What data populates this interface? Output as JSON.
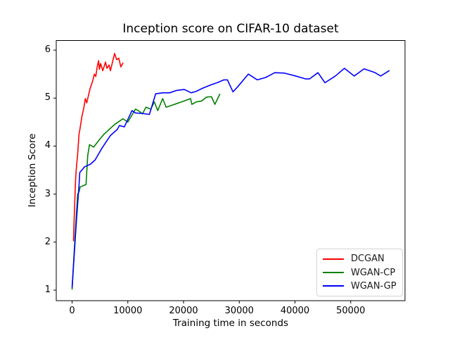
{
  "figure": {
    "background": "#ffffff",
    "frame_color": "#000000",
    "text_color": "#000000"
  },
  "chart_data": {
    "type": "line",
    "title": "Inception score on CIFAR-10 dataset",
    "xlabel": "Training time in seconds",
    "ylabel": "Inception Score",
    "xlim": [
      -2845,
      59745
    ],
    "ylim": [
      0.78,
      6.2
    ],
    "xticks": [
      0,
      10000,
      20000,
      30000,
      40000,
      50000
    ],
    "xtick_labels": [
      "0",
      "10000",
      "20000",
      "30000",
      "40000",
      "50000"
    ],
    "yticks": [
      1,
      2,
      3,
      4,
      5,
      6
    ],
    "ytick_labels": [
      "1",
      "2",
      "3",
      "4",
      "5",
      "6"
    ],
    "grid": false,
    "legend": {
      "position": "lower right",
      "entries": [
        "DCGAN",
        "WGAN-CP",
        "WGAN-GP"
      ]
    },
    "series": [
      {
        "name": "DCGAN",
        "color": "#ff0000",
        "x": [
          250,
          375,
          500,
          625,
          750,
          1000,
          1250,
          1375,
          1750,
          2125,
          2375,
          2625,
          3250,
          3625,
          4000,
          4250,
          4500,
          4750,
          4900,
          5125,
          5500,
          6000,
          6250,
          6625,
          6875,
          7625,
          8000,
          8375,
          8750,
          9125
        ],
        "y": [
          2.03,
          2.5,
          2.92,
          3.3,
          3.52,
          3.84,
          4.26,
          4.33,
          4.61,
          4.81,
          4.99,
          4.9,
          5.21,
          5.33,
          5.5,
          5.45,
          5.65,
          5.78,
          5.6,
          5.72,
          5.57,
          5.75,
          5.62,
          5.69,
          5.57,
          5.93,
          5.8,
          5.83,
          5.65,
          5.73
        ]
      },
      {
        "name": "WGAN-CP",
        "color": "#008000",
        "x": [
          0,
          250,
          500,
          750,
          1000,
          1250,
          1450,
          2500,
          2650,
          2800,
          3125,
          3875,
          5000,
          5750,
          6875,
          7625,
          8500,
          9125,
          10000,
          11375,
          11875,
          12625,
          13250,
          14125,
          14750,
          15375,
          16250,
          16875,
          17625,
          18875,
          20125,
          21250,
          21500,
          22250,
          23250,
          24125,
          25000,
          25625,
          26500
        ],
        "y": [
          1.02,
          1.55,
          2.05,
          2.55,
          3.0,
          3.05,
          3.15,
          3.2,
          3.5,
          3.8,
          4.03,
          3.98,
          4.15,
          4.25,
          4.37,
          4.45,
          4.52,
          4.57,
          4.5,
          4.77,
          4.74,
          4.67,
          4.81,
          4.77,
          4.92,
          4.74,
          4.99,
          4.81,
          4.84,
          4.89,
          4.94,
          4.99,
          4.87,
          4.92,
          4.94,
          5.02,
          5.03,
          4.87,
          5.08
        ]
      },
      {
        "name": "WGAN-GP",
        "color": "#0000ff",
        "x": [
          0,
          250,
          500,
          750,
          1000,
          1250,
          1375,
          2250,
          3250,
          4125,
          5375,
          6875,
          8125,
          8500,
          9375,
          10750,
          11375,
          12625,
          13875,
          15000,
          16250,
          17500,
          18750,
          20125,
          21375,
          22250,
          23500,
          25000,
          26000,
          27250,
          27875,
          28875,
          29750,
          31625,
          33250,
          34750,
          36375,
          38125,
          40125,
          41875,
          42625,
          44125,
          45375,
          47250,
          48875,
          50625,
          52400,
          54375,
          55375,
          56900
        ],
        "y": [
          1.06,
          1.5,
          1.95,
          2.4,
          2.8,
          3.2,
          3.45,
          3.57,
          3.62,
          3.71,
          3.96,
          4.22,
          4.35,
          4.43,
          4.4,
          4.74,
          4.69,
          4.68,
          4.66,
          5.09,
          5.11,
          5.11,
          5.16,
          5.18,
          5.11,
          5.14,
          5.21,
          5.28,
          5.32,
          5.38,
          5.38,
          5.13,
          5.24,
          5.5,
          5.38,
          5.43,
          5.53,
          5.52,
          5.46,
          5.4,
          5.4,
          5.53,
          5.32,
          5.46,
          5.62,
          5.46,
          5.61,
          5.53,
          5.46,
          5.57
        ]
      }
    ]
  }
}
